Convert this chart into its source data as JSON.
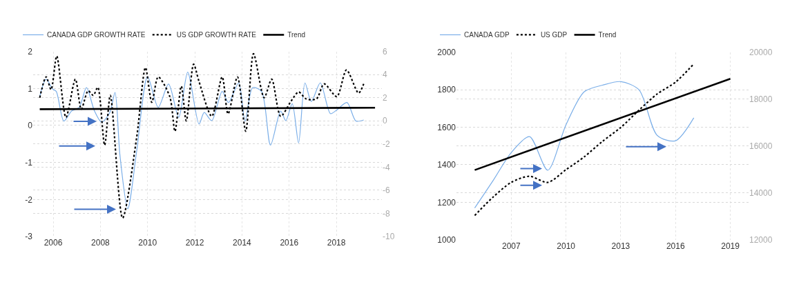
{
  "chart_data": [
    {
      "type": "line",
      "grid": true,
      "legend": "top left",
      "xlim": [
        2005.15,
        2019.93
      ],
      "xticks": [
        2006,
        2008,
        2010,
        2012,
        2014,
        2016,
        2018
      ],
      "ylim": [
        -3,
        2
      ],
      "yticks": [
        -3,
        -2,
        -1,
        0,
        1,
        2
      ],
      "y2lim": [
        -10,
        6
      ],
      "y2ticks": [
        -10,
        -8,
        -6,
        -4,
        -2,
        0,
        2,
        4,
        6
      ],
      "series": [
        {
          "name": "CANADA GDP GROWTH RATE",
          "color": "#7aaee8",
          "line_style": "solid",
          "x": [
            2005.43,
            2005.7,
            2005.97,
            2006.13,
            2006.45,
            2006.78,
            2007.1,
            2007.41,
            2007.75,
            2008.05,
            2008.4,
            2008.62,
            2008.83,
            2009.16,
            2009.54,
            2010.0,
            2010.45,
            2010.89,
            2011.32,
            2011.7,
            2012.18,
            2012.4,
            2012.72,
            2013.16,
            2013.43,
            2013.86,
            2014.13,
            2014.45,
            2014.83,
            2015.21,
            2015.64,
            2015.86,
            2016.13,
            2016.4,
            2016.67,
            2016.94,
            2017.32,
            2017.75,
            2018.02,
            2018.45,
            2018.83,
            2019.16
          ],
          "values": [
            0.79,
            1.25,
            0.99,
            0.92,
            0.12,
            0.39,
            0.49,
            1.02,
            0.39,
            0.09,
            0.35,
            0.89,
            -0.81,
            -2.25,
            -0.68,
            1.32,
            0.49,
            1.12,
            0.22,
            1.44,
            0.04,
            0.35,
            0.13,
            0.92,
            0.62,
            1.15,
            0.12,
            1.02,
            0.92,
            -0.53,
            0.39,
            0.13,
            0.59,
            -0.47,
            1.15,
            0.65,
            1.15,
            0.32,
            0.42,
            0.62,
            0.12,
            0.15
          ]
        },
        {
          "name": "US GDP GROWTH RATE",
          "color": "#000000",
          "line_style": "dotted",
          "axis": "y2",
          "x": [
            2005.43,
            2005.7,
            2005.91,
            2006.15,
            2006.54,
            2006.94,
            2007.19,
            2007.48,
            2007.7,
            2007.89,
            2008.18,
            2008.42,
            2008.94,
            2009.54,
            2009.91,
            2010.18,
            2010.45,
            2010.94,
            2011.16,
            2011.43,
            2011.64,
            2011.95,
            2012.18,
            2012.72,
            2013.16,
            2013.41,
            2013.81,
            2014.16,
            2014.49,
            2014.94,
            2015.26,
            2015.64,
            2016.08,
            2016.4,
            2016.72,
            2017.16,
            2017.48,
            2018.02,
            2018.43,
            2018.94,
            2019.16
          ],
          "values": [
            2.0,
            3.8,
            2.7,
            5.6,
            0.3,
            3.6,
            1.0,
            2.6,
            2.2,
            2.9,
            -2.1,
            2.2,
            -8.4,
            -1.4,
            4.6,
            1.6,
            3.8,
            2.1,
            -0.9,
            3.0,
            0.0,
            4.9,
            3.4,
            0.4,
            3.8,
            0.6,
            3.8,
            -0.9,
            5.8,
            2.0,
            3.6,
            0.4,
            1.7,
            2.5,
            1.9,
            1.9,
            3.2,
            2.1,
            4.4,
            2.4,
            3.2
          ]
        },
        {
          "name": "Trend",
          "color": "#000000",
          "line_style": "solid",
          "x": [
            2005.43,
            2019.64
          ],
          "values": [
            0.44,
            0.48
          ]
        }
      ]
    },
    {
      "type": "line",
      "grid": true,
      "legend": "top left",
      "xlim": [
        2004,
        2020
      ],
      "xticks": [
        2007,
        2010,
        2013,
        2016,
        2019
      ],
      "ylim": [
        1000,
        2000
      ],
      "yticks": [
        1000,
        1200,
        1400,
        1600,
        1800,
        2000
      ],
      "y2lim": [
        12000,
        20000
      ],
      "y2ticks": [
        12000,
        14000,
        16000,
        18000,
        20000
      ],
      "series": [
        {
          "name": "CANADA GDP",
          "color": "#7aaee8",
          "line_style": "solid",
          "x": [
            2005,
            2006,
            2007,
            2008,
            2009,
            2010,
            2011,
            2012,
            2013,
            2014,
            2015,
            2016,
            2017
          ],
          "values": [
            1170,
            1315,
            1465,
            1550,
            1371,
            1613,
            1789,
            1824,
            1843,
            1799,
            1556,
            1528,
            1650
          ]
        },
        {
          "name": "US GDP",
          "color": "#000000",
          "line_style": "dotted",
          "axis": "y2",
          "x": [
            2005,
            2006,
            2007,
            2008,
            2009,
            2010,
            2011,
            2012,
            2013,
            2014,
            2015,
            2016,
            2017
          ],
          "values": [
            13040,
            13820,
            14450,
            14710,
            14450,
            14990,
            15540,
            16200,
            16790,
            17530,
            18220,
            18720,
            19500
          ]
        },
        {
          "name": "Trend",
          "color": "#000000",
          "line_style": "solid",
          "x": [
            2005,
            2019
          ],
          "values": [
            1372,
            1858
          ]
        }
      ]
    }
  ]
}
